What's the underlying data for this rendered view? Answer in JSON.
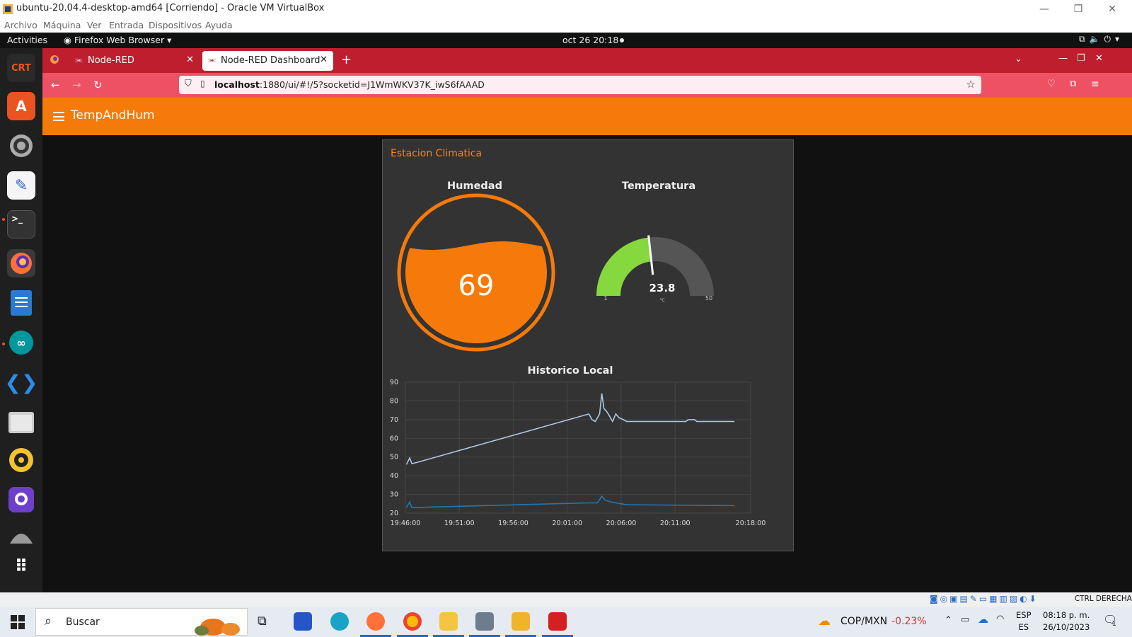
{
  "virtualbox": {
    "title": "ubuntu-20.04.4-desktop-amd64 [Corriendo] - Oracle VM VirtualBox",
    "menu": [
      "Archivo",
      "Máquina",
      "Ver",
      "Entrada",
      "Dispositivos",
      "Ayuda"
    ],
    "status_right": "CTRL DERECHA"
  },
  "ubuntu": {
    "activities": "Activities",
    "app_menu": "Firefox Web Browser ▾",
    "clock": "oct 26  20:18"
  },
  "dock": {
    "items": [
      "crt-icon",
      "app-store-icon",
      "settings-icon",
      "text-editor-icon",
      "terminal-icon",
      "firefox-icon",
      "writer-icon",
      "arduino-icon",
      "vscode-icon",
      "files-icon",
      "rhythmbox-icon",
      "github-icon",
      "disk-icon",
      "show-apps-icon"
    ],
    "badge": "2"
  },
  "firefox": {
    "tabs": [
      {
        "label": "Node-RED"
      },
      {
        "label": "Node-RED Dashboard"
      }
    ],
    "url_host": "localhost",
    "url_path": ":1880/ui/#!/5?socketid=J1WmWKV37K_iwS6fAAAD"
  },
  "dashboard": {
    "title": "TempAndHum",
    "group_title": "Estacion Climatica",
    "humidity": {
      "title": "Humedad",
      "value": "69",
      "level_percent": 69
    },
    "temperature": {
      "title": "Temperatura",
      "value": "23.8",
      "unit": "°C",
      "min": "1",
      "max": "50",
      "value_num": 23.8,
      "min_num": 1,
      "max_num": 50,
      "fill_color": "#85d83d",
      "track_color": "#555555"
    },
    "chart_title": "Historico Local"
  },
  "chart_data": {
    "type": "line",
    "title": "Historico Local",
    "xlabel": "",
    "ylabel": "",
    "x_ticks": [
      "19:46:00",
      "19:51:00",
      "19:56:00",
      "20:01:00",
      "20:06:00",
      "20:11:00",
      "20:18:00"
    ],
    "x_tick_minutes": [
      0,
      5,
      10,
      15,
      20,
      25,
      32
    ],
    "y_ticks": [
      "90",
      "80",
      "70",
      "60",
      "50",
      "40",
      "30",
      "20"
    ],
    "ylim": [
      20,
      90
    ],
    "xlim_minutes": [
      0,
      32
    ],
    "grid": true,
    "series": [
      {
        "color": "#aec7e8",
        "points": [
          [
            0.1,
            46
          ],
          [
            0.4,
            49.5
          ],
          [
            0.6,
            46.5
          ],
          [
            1.0,
            47
          ],
          [
            17.0,
            73
          ],
          [
            17.3,
            70
          ],
          [
            17.6,
            69
          ],
          [
            18.0,
            73
          ],
          [
            18.2,
            84
          ],
          [
            18.4,
            76
          ],
          [
            18.7,
            74
          ],
          [
            19.0,
            71
          ],
          [
            19.2,
            69
          ],
          [
            19.5,
            73
          ],
          [
            19.8,
            71
          ],
          [
            20.2,
            70
          ],
          [
            20.5,
            69
          ],
          [
            21.0,
            69
          ],
          [
            25.0,
            69
          ],
          [
            26.0,
            69
          ],
          [
            26.2,
            70
          ],
          [
            26.8,
            70
          ],
          [
            27.0,
            69
          ],
          [
            30.5,
            69
          ]
        ]
      },
      {
        "color": "#1f77b4",
        "points": [
          [
            0.1,
            23
          ],
          [
            0.4,
            26
          ],
          [
            0.6,
            23
          ],
          [
            17.0,
            25.5
          ],
          [
            17.8,
            25.5
          ],
          [
            18.2,
            29
          ],
          [
            18.5,
            27
          ],
          [
            19.0,
            26
          ],
          [
            20.0,
            25
          ],
          [
            20.5,
            24.5
          ],
          [
            30.5,
            24
          ]
        ]
      }
    ]
  },
  "taskbar": {
    "search_placeholder": "Buscar",
    "stock_label": "COP/MXN",
    "stock_change": "-0.23%",
    "lang_1": "ESP",
    "lang_2": "ES",
    "time": "08:18 p. m.",
    "date": "26/10/2023",
    "notifications": "1"
  }
}
